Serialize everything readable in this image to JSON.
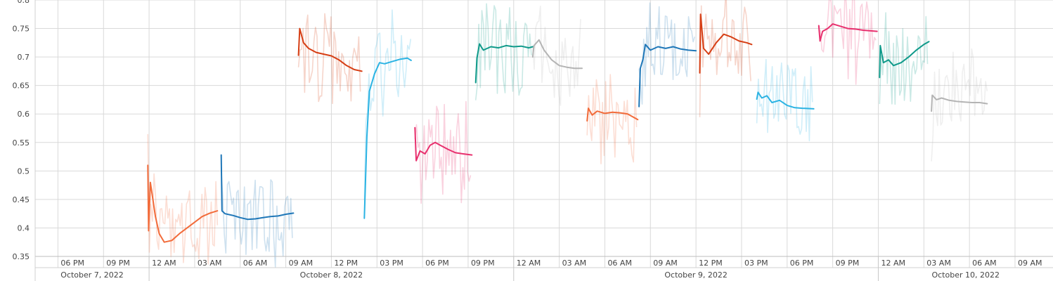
{
  "chart_data": {
    "type": "line",
    "title": "",
    "xlabel": "",
    "ylabel": "",
    "grid": true,
    "ylim": [
      0.35,
      0.8
    ],
    "xlim": [
      "2022-10-07T16:30",
      "2022-10-10T11:30"
    ],
    "y_ticks": [
      "0.35",
      "0.4",
      "0.45",
      "0.5",
      "0.55",
      "0.6",
      "0.65",
      "0.7",
      "0.75",
      "0.8"
    ],
    "x_ticks": [
      {
        "t": "2022-10-07T18:00",
        "label": "06 PM"
      },
      {
        "t": "2022-10-07T21:00",
        "label": "09 PM"
      },
      {
        "t": "2022-10-08T00:00",
        "label": "12 AM"
      },
      {
        "t": "2022-10-08T03:00",
        "label": "03 AM"
      },
      {
        "t": "2022-10-08T06:00",
        "label": "06 AM"
      },
      {
        "t": "2022-10-08T09:00",
        "label": "09 AM"
      },
      {
        "t": "2022-10-08T12:00",
        "label": "12 PM"
      },
      {
        "t": "2022-10-08T15:00",
        "label": "03 PM"
      },
      {
        "t": "2022-10-08T18:00",
        "label": "06 PM"
      },
      {
        "t": "2022-10-08T21:00",
        "label": "09 PM"
      },
      {
        "t": "2022-10-09T00:00",
        "label": "12 AM"
      },
      {
        "t": "2022-10-09T03:00",
        "label": "03 AM"
      },
      {
        "t": "2022-10-09T06:00",
        "label": "06 AM"
      },
      {
        "t": "2022-10-09T09:00",
        "label": "09 AM"
      },
      {
        "t": "2022-10-09T12:00",
        "label": "12 PM"
      },
      {
        "t": "2022-10-09T15:00",
        "label": "03 PM"
      },
      {
        "t": "2022-10-09T18:00",
        "label": "06 PM"
      },
      {
        "t": "2022-10-09T21:00",
        "label": "09 PM"
      },
      {
        "t": "2022-10-10T00:00",
        "label": "12 AM"
      },
      {
        "t": "2022-10-10T03:00",
        "label": "03 AM"
      },
      {
        "t": "2022-10-10T06:00",
        "label": "06 AM"
      },
      {
        "t": "2022-10-10T09:00",
        "label": "09 AM"
      }
    ],
    "date_bands": [
      {
        "start": "2022-10-07T16:30",
        "end": "2022-10-08T00:00",
        "label": "October 7, 2022"
      },
      {
        "start": "2022-10-08T00:00",
        "end": "2022-10-09T00:00",
        "label": "October 8, 2022"
      },
      {
        "start": "2022-10-09T00:00",
        "end": "2022-10-10T00:00",
        "label": "October 9, 2022"
      },
      {
        "start": "2022-10-10T00:00",
        "end": "2022-10-10T11:30",
        "label": "October 10, 2022"
      }
    ],
    "series": [
      {
        "color": "#f26b3a",
        "points": [
          [
            "2022-10-07T23:55",
            0.51
          ],
          [
            "2022-10-07T23:58",
            0.395
          ],
          [
            "2022-10-08T00:05",
            0.48
          ],
          [
            "2022-10-08T00:15",
            0.45
          ],
          [
            "2022-10-08T00:25",
            0.42
          ],
          [
            "2022-10-08T00:40",
            0.39
          ],
          [
            "2022-10-08T01:00",
            0.375
          ],
          [
            "2022-10-08T01:30",
            0.378
          ],
          [
            "2022-10-08T02:00",
            0.39
          ],
          [
            "2022-10-08T02:30",
            0.4
          ],
          [
            "2022-10-08T03:00",
            0.41
          ],
          [
            "2022-10-08T03:30",
            0.42
          ],
          [
            "2022-10-08T04:00",
            0.426
          ],
          [
            "2022-10-08T04:30",
            0.43
          ]
        ]
      },
      {
        "color": "#1f77b8",
        "points": [
          [
            "2022-10-08T04:45",
            0.528
          ],
          [
            "2022-10-08T04:48",
            0.43
          ],
          [
            "2022-10-08T05:00",
            0.425
          ],
          [
            "2022-10-08T05:30",
            0.422
          ],
          [
            "2022-10-08T06:00",
            0.418
          ],
          [
            "2022-10-08T06:30",
            0.415
          ],
          [
            "2022-10-08T07:00",
            0.416
          ],
          [
            "2022-10-08T07:30",
            0.418
          ],
          [
            "2022-10-08T08:00",
            0.42
          ],
          [
            "2022-10-08T08:30",
            0.421
          ],
          [
            "2022-10-08T09:00",
            0.424
          ],
          [
            "2022-10-08T09:30",
            0.426
          ]
        ]
      },
      {
        "color": "#d63e14",
        "points": [
          [
            "2022-10-08T09:50",
            0.703
          ],
          [
            "2022-10-08T09:55",
            0.75
          ],
          [
            "2022-10-08T10:10",
            0.725
          ],
          [
            "2022-10-08T10:30",
            0.715
          ],
          [
            "2022-10-08T11:00",
            0.708
          ],
          [
            "2022-10-08T11:30",
            0.705
          ],
          [
            "2022-10-08T12:00",
            0.702
          ],
          [
            "2022-10-08T12:30",
            0.695
          ],
          [
            "2022-10-08T13:00",
            0.685
          ],
          [
            "2022-10-08T13:30",
            0.678
          ],
          [
            "2022-10-08T14:00",
            0.675
          ]
        ]
      },
      {
        "color": "#2bb3e3",
        "points": [
          [
            "2022-10-08T14:10",
            0.417
          ],
          [
            "2022-10-08T14:20",
            0.56
          ],
          [
            "2022-10-08T14:30",
            0.64
          ],
          [
            "2022-10-08T14:50",
            0.67
          ],
          [
            "2022-10-08T15:10",
            0.69
          ],
          [
            "2022-10-08T15:30",
            0.688
          ],
          [
            "2022-10-08T16:00",
            0.692
          ],
          [
            "2022-10-08T16:30",
            0.696
          ],
          [
            "2022-10-08T17:00",
            0.698
          ],
          [
            "2022-10-08T17:15",
            0.694
          ]
        ]
      },
      {
        "color": "#e8306e",
        "points": [
          [
            "2022-10-08T17:30",
            0.576
          ],
          [
            "2022-10-08T17:35",
            0.518
          ],
          [
            "2022-10-08T17:50",
            0.535
          ],
          [
            "2022-10-08T18:10",
            0.53
          ],
          [
            "2022-10-08T18:30",
            0.545
          ],
          [
            "2022-10-08T18:50",
            0.55
          ],
          [
            "2022-10-08T19:10",
            0.545
          ],
          [
            "2022-10-08T19:40",
            0.538
          ],
          [
            "2022-10-08T20:10",
            0.532
          ],
          [
            "2022-10-08T20:40",
            0.53
          ],
          [
            "2022-10-08T21:15",
            0.528
          ]
        ]
      },
      {
        "color": "#0f9a8a",
        "points": [
          [
            "2022-10-08T21:30",
            0.655
          ],
          [
            "2022-10-08T21:35",
            0.698
          ],
          [
            "2022-10-08T21:45",
            0.723
          ],
          [
            "2022-10-08T22:00",
            0.712
          ],
          [
            "2022-10-08T22:30",
            0.718
          ],
          [
            "2022-10-08T23:00",
            0.716
          ],
          [
            "2022-10-08T23:30",
            0.72
          ],
          [
            "2022-10-09T00:00",
            0.718
          ],
          [
            "2022-10-09T00:30",
            0.719
          ],
          [
            "2022-10-09T01:00",
            0.716
          ],
          [
            "2022-10-09T01:15",
            0.718
          ]
        ]
      },
      {
        "color": "#b4b4b4",
        "points": [
          [
            "2022-10-09T01:15",
            0.7
          ],
          [
            "2022-10-09T01:20",
            0.72
          ],
          [
            "2022-10-09T01:40",
            0.73
          ],
          [
            "2022-10-09T02:00",
            0.712
          ],
          [
            "2022-10-09T02:30",
            0.695
          ],
          [
            "2022-10-09T03:00",
            0.685
          ],
          [
            "2022-10-09T03:30",
            0.682
          ],
          [
            "2022-10-09T04:00",
            0.68
          ],
          [
            "2022-10-09T04:30",
            0.68
          ]
        ]
      },
      {
        "color": "#f26b3a",
        "points": [
          [
            "2022-10-09T04:50",
            0.588
          ],
          [
            "2022-10-09T04:55",
            0.61
          ],
          [
            "2022-10-09T05:10",
            0.598
          ],
          [
            "2022-10-09T05:30",
            0.605
          ],
          [
            "2022-10-09T06:00",
            0.601
          ],
          [
            "2022-10-09T06:30",
            0.603
          ],
          [
            "2022-10-09T07:00",
            0.602
          ],
          [
            "2022-10-09T07:30",
            0.6
          ],
          [
            "2022-10-09T07:50",
            0.595
          ],
          [
            "2022-10-09T08:10",
            0.59
          ]
        ]
      },
      {
        "color": "#1f77b8",
        "points": [
          [
            "2022-10-09T08:15",
            0.613
          ],
          [
            "2022-10-09T08:20",
            0.68
          ],
          [
            "2022-10-09T08:30",
            0.695
          ],
          [
            "2022-10-09T08:40",
            0.722
          ],
          [
            "2022-10-09T09:00",
            0.712
          ],
          [
            "2022-10-09T09:30",
            0.718
          ],
          [
            "2022-10-09T10:00",
            0.715
          ],
          [
            "2022-10-09T10:30",
            0.718
          ],
          [
            "2022-10-09T11:00",
            0.714
          ],
          [
            "2022-10-09T11:30",
            0.712
          ],
          [
            "2022-10-09T12:00",
            0.711
          ]
        ]
      },
      {
        "color": "#d63e14",
        "points": [
          [
            "2022-10-09T12:15",
            0.672
          ],
          [
            "2022-10-09T12:18",
            0.775
          ],
          [
            "2022-10-09T12:30",
            0.715
          ],
          [
            "2022-10-09T12:50",
            0.705
          ],
          [
            "2022-10-09T13:20",
            0.725
          ],
          [
            "2022-10-09T13:50",
            0.74
          ],
          [
            "2022-10-09T14:20",
            0.735
          ],
          [
            "2022-10-09T14:50",
            0.728
          ],
          [
            "2022-10-09T15:20",
            0.725
          ],
          [
            "2022-10-09T15:40",
            0.722
          ]
        ]
      },
      {
        "color": "#2bb3e3",
        "points": [
          [
            "2022-10-09T16:00",
            0.626
          ],
          [
            "2022-10-09T16:05",
            0.638
          ],
          [
            "2022-10-09T16:20",
            0.628
          ],
          [
            "2022-10-09T16:40",
            0.632
          ],
          [
            "2022-10-09T17:00",
            0.62
          ],
          [
            "2022-10-09T17:30",
            0.624
          ],
          [
            "2022-10-09T18:00",
            0.615
          ],
          [
            "2022-10-09T18:30",
            0.611
          ],
          [
            "2022-10-09T19:00",
            0.61
          ],
          [
            "2022-10-09T19:45",
            0.609
          ]
        ]
      },
      {
        "color": "#e8306e",
        "points": [
          [
            "2022-10-09T20:05",
            0.755
          ],
          [
            "2022-10-09T20:10",
            0.728
          ],
          [
            "2022-10-09T20:20",
            0.745
          ],
          [
            "2022-10-09T20:40",
            0.75
          ],
          [
            "2022-10-09T21:00",
            0.758
          ],
          [
            "2022-10-09T21:30",
            0.754
          ],
          [
            "2022-10-09T22:00",
            0.75
          ],
          [
            "2022-10-09T22:30",
            0.749
          ],
          [
            "2022-10-09T23:00",
            0.747
          ],
          [
            "2022-10-09T23:55",
            0.745
          ]
        ]
      },
      {
        "color": "#0f9a8a",
        "points": [
          [
            "2022-10-10T00:05",
            0.664
          ],
          [
            "2022-10-10T00:08",
            0.72
          ],
          [
            "2022-10-10T00:20",
            0.69
          ],
          [
            "2022-10-10T00:40",
            0.695
          ],
          [
            "2022-10-10T01:00",
            0.685
          ],
          [
            "2022-10-10T01:30",
            0.69
          ],
          [
            "2022-10-10T02:00",
            0.7
          ],
          [
            "2022-10-10T02:30",
            0.712
          ],
          [
            "2022-10-10T03:00",
            0.722
          ],
          [
            "2022-10-10T03:20",
            0.727
          ]
        ]
      },
      {
        "color": "#b4b4b4",
        "points": [
          [
            "2022-10-10T03:30",
            0.605
          ],
          [
            "2022-10-10T03:33",
            0.633
          ],
          [
            "2022-10-10T03:50",
            0.625
          ],
          [
            "2022-10-10T04:10",
            0.628
          ],
          [
            "2022-10-10T04:40",
            0.624
          ],
          [
            "2022-10-10T05:10",
            0.622
          ],
          [
            "2022-10-10T05:40",
            0.621
          ],
          [
            "2022-10-10T06:10",
            0.62
          ],
          [
            "2022-10-10T06:40",
            0.62
          ],
          [
            "2022-10-10T07:10",
            0.618
          ]
        ]
      }
    ]
  }
}
